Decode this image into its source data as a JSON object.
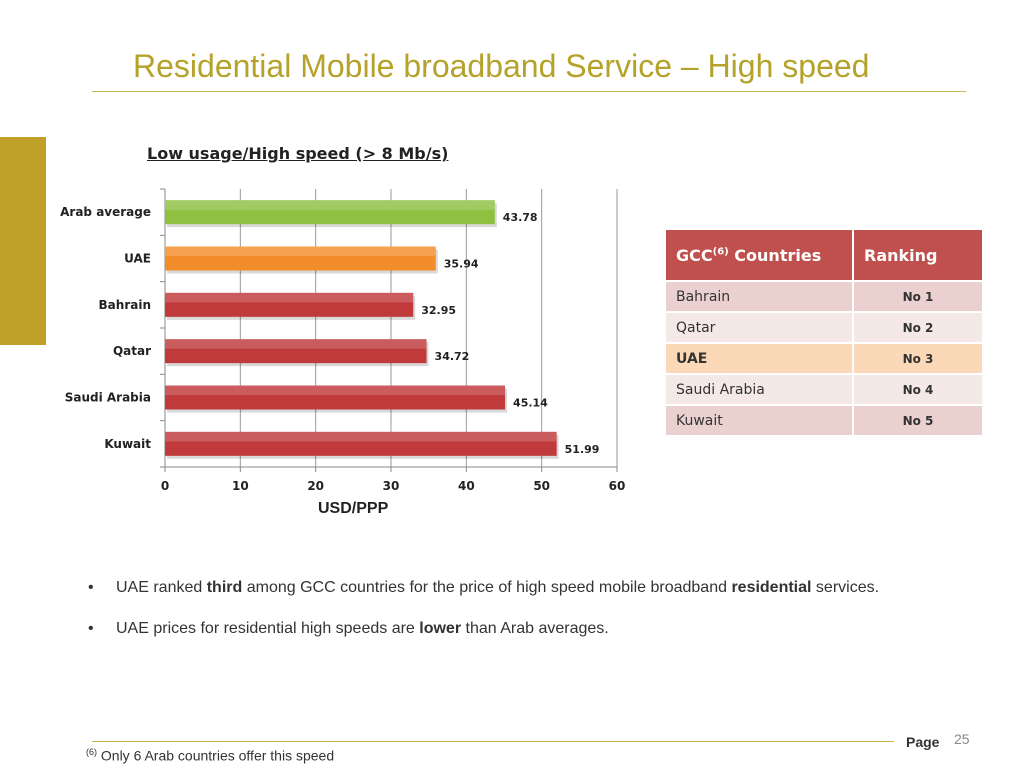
{
  "slide": {
    "title": "Residential Mobile broadband Service – High speed",
    "page_label": "Page",
    "page_number": "25"
  },
  "chart_data": {
    "type": "bar",
    "orientation": "horizontal",
    "title": "Low usage/High speed (> 8 Mb/s)",
    "xlabel": "USD/PPP",
    "ylabel": "",
    "categories": [
      "Arab average",
      "UAE",
      "Bahrain",
      "Qatar",
      "Saudi Arabia",
      "Kuwait"
    ],
    "values": [
      43.78,
      35.94,
      32.95,
      34.72,
      45.14,
      51.99
    ],
    "value_labels": [
      "43.78",
      "35.94",
      "32.95",
      "34.72",
      "45.14",
      "51.99"
    ],
    "bar_colors": [
      "#8fc041",
      "#f28c28",
      "#c0393b",
      "#c0393b",
      "#c0393b",
      "#c0393b"
    ],
    "xlim": [
      0,
      60
    ],
    "ticks": [
      0,
      10,
      20,
      30,
      40,
      50,
      60
    ],
    "grid": true
  },
  "ranking_table": {
    "headers": {
      "countries_label": "GCC",
      "countries_sup": "(6)",
      "countries_suffix": " Countries",
      "ranking": "Ranking"
    },
    "rows": [
      {
        "country": "Bahrain",
        "rank": "No 1",
        "highlight": false
      },
      {
        "country": "Qatar",
        "rank": "No 2",
        "highlight": false
      },
      {
        "country": "UAE",
        "rank": "No 3",
        "highlight": true
      },
      {
        "country": "Saudi Arabia",
        "rank": "No 4",
        "highlight": false
      },
      {
        "country": "Kuwait",
        "rank": "No 5",
        "highlight": false
      }
    ]
  },
  "bullets": [
    {
      "dot": "•",
      "pre": "UAE ranked ",
      "bold": "third",
      "mid": " among GCC countries for the price of high speed mobile broadband ",
      "bold2": "residential",
      "post": " services."
    },
    {
      "dot": "•",
      "pre": "UAE prices for residential high speeds are ",
      "bold": "lower",
      "mid": " than Arab averages.",
      "bold2": "",
      "post": ""
    }
  ],
  "footnote": {
    "marker": "(6)",
    "text": "Only 6 Arab countries offer this speed"
  },
  "colors": {
    "title": "#b5a22a",
    "accent": "#bfa12a",
    "table_header": "#c0504d"
  }
}
